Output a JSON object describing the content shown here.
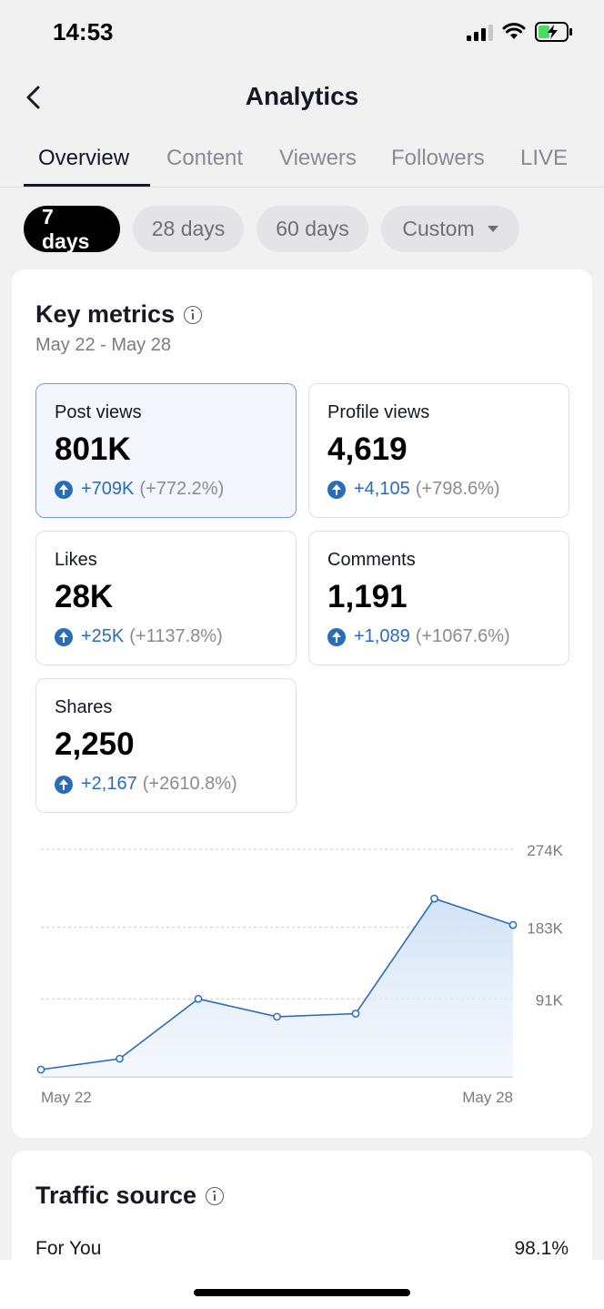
{
  "status_bar": {
    "time": "14:53"
  },
  "header": {
    "title": "Analytics"
  },
  "tabs": [
    {
      "label": "Overview"
    },
    {
      "label": "Content"
    },
    {
      "label": "Viewers"
    },
    {
      "label": "Followers"
    },
    {
      "label": "LIVE"
    }
  ],
  "filters": [
    {
      "label": "7 days"
    },
    {
      "label": "28 days"
    },
    {
      "label": "60 days"
    },
    {
      "label": "Custom"
    }
  ],
  "key_metrics": {
    "title": "Key metrics",
    "date_range": "May 22 - May 28",
    "metrics": [
      {
        "label": "Post views",
        "value": "801K",
        "delta": "+709K",
        "pct": "(+772.2%)"
      },
      {
        "label": "Profile views",
        "value": "4,619",
        "delta": "+4,105",
        "pct": "(+798.6%)"
      },
      {
        "label": "Likes",
        "value": "28K",
        "delta": "+25K",
        "pct": "(+1137.8%)"
      },
      {
        "label": "Comments",
        "value": "1,191",
        "delta": "+1,089",
        "pct": "(+1067.6%)"
      },
      {
        "label": "Shares",
        "value": "2,250",
        "delta": "+2,167",
        "pct": "(+2610.8%)"
      }
    ]
  },
  "chart_data": {
    "type": "area",
    "x": [
      "May 22",
      "May 23",
      "May 24",
      "May 25",
      "May 26",
      "May 27",
      "May 28"
    ],
    "values": [
      0,
      14000,
      91000,
      68000,
      72000,
      220000,
      186000
    ],
    "ylim": [
      0,
      274000
    ],
    "yticks": [
      {
        "value": 274000,
        "label": "274K"
      },
      {
        "value": 183000,
        "label": "183K"
      },
      {
        "value": 91000,
        "label": "91K"
      }
    ],
    "x_tick_labels": [
      "May 22",
      "May 28"
    ],
    "colors": {
      "line": "#2b6cb7",
      "fill": "#d8e6f7"
    }
  },
  "traffic_source": {
    "title": "Traffic source",
    "rows": [
      {
        "label": "For You",
        "value": "98.1%"
      }
    ]
  }
}
